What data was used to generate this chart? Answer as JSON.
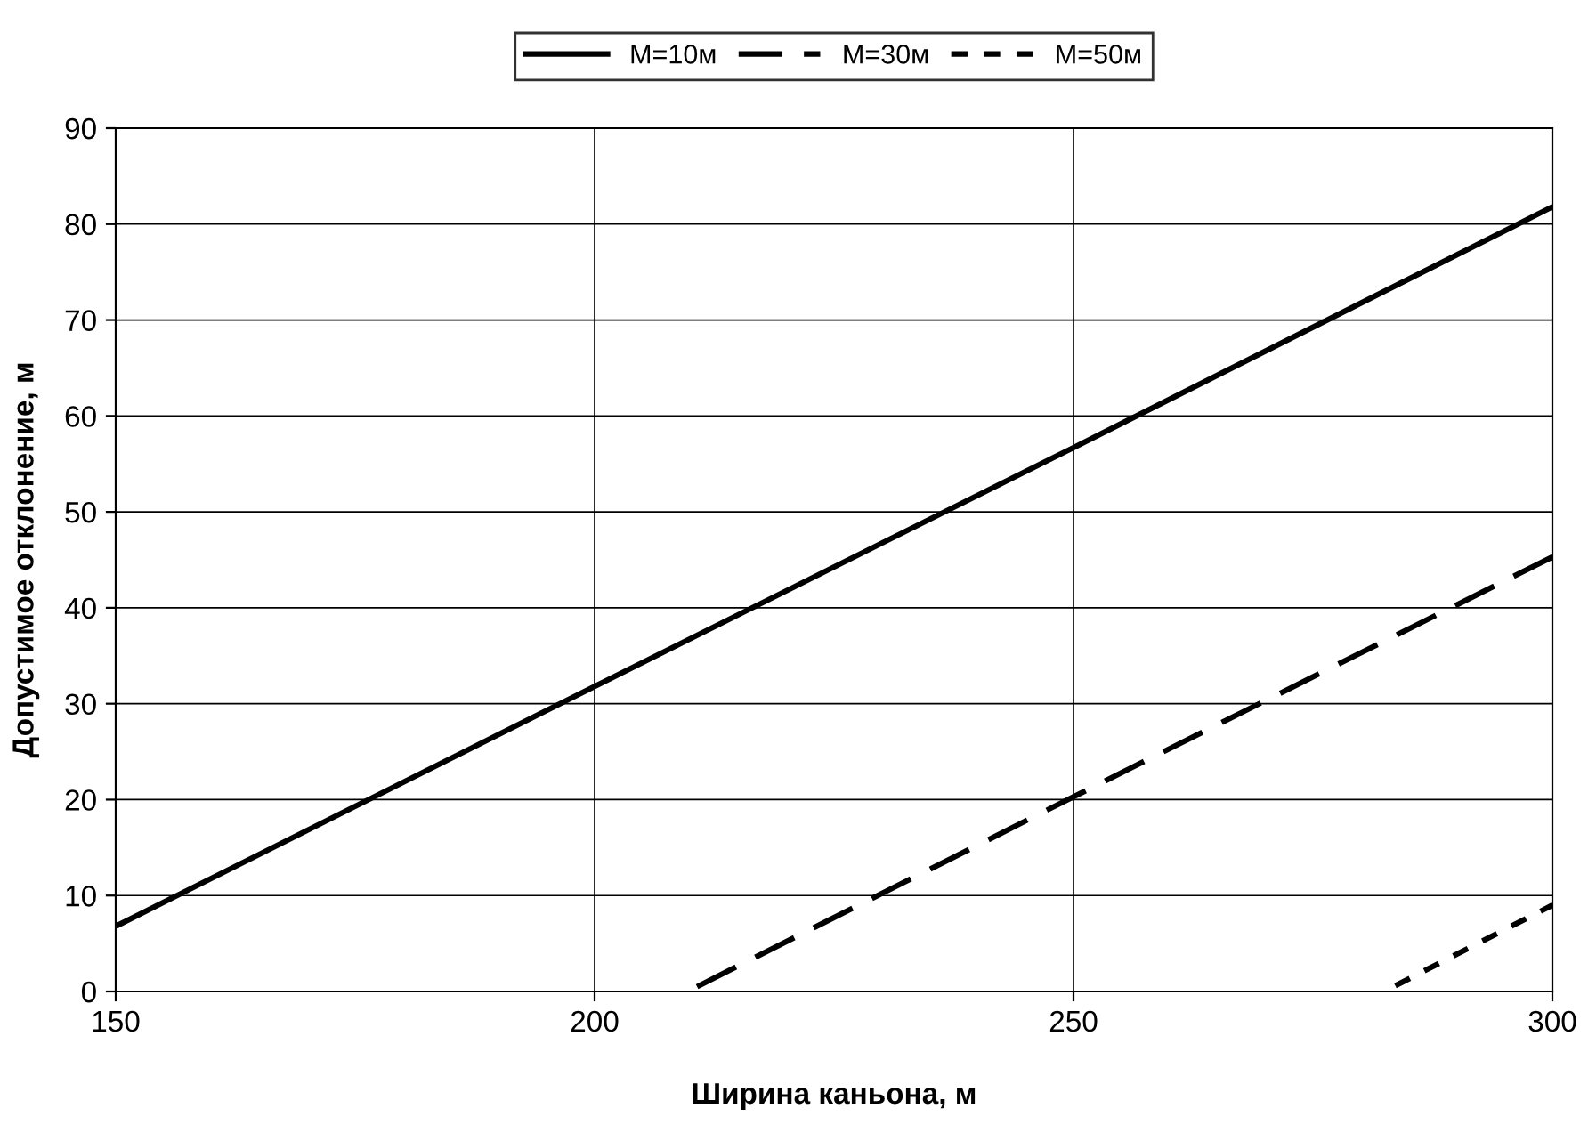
{
  "chart_data": {
    "type": "line",
    "xlabel": "Ширина каньона, м",
    "ylabel": "Допустимое отклонение, м",
    "xlim": [
      150,
      300
    ],
    "xticks": [
      150,
      200,
      250,
      300
    ],
    "ylim": [
      0,
      90
    ],
    "yticks": [
      0,
      10,
      20,
      30,
      40,
      50,
      60,
      70,
      80,
      90
    ],
    "grid": true,
    "legend": "top",
    "marker": "none",
    "series": [
      {
        "name": "M=10м",
        "color": "#000000",
        "line_style": "solid",
        "x": [
          150,
          200,
          250,
          300
        ],
        "values": [
          6.8,
          31.8,
          56.7,
          81.8
        ]
      },
      {
        "name": "M=30м",
        "color": "#000000",
        "line_style": "dashed",
        "x": [
          210.7,
          250,
          300
        ],
        "values": [
          0.5,
          20.3,
          45.3
        ]
      },
      {
        "name": "M=50м",
        "color": "#000000",
        "line_style": "dotted",
        "x": [
          283.6,
          300
        ],
        "values": [
          0.6,
          9.0
        ]
      }
    ]
  }
}
